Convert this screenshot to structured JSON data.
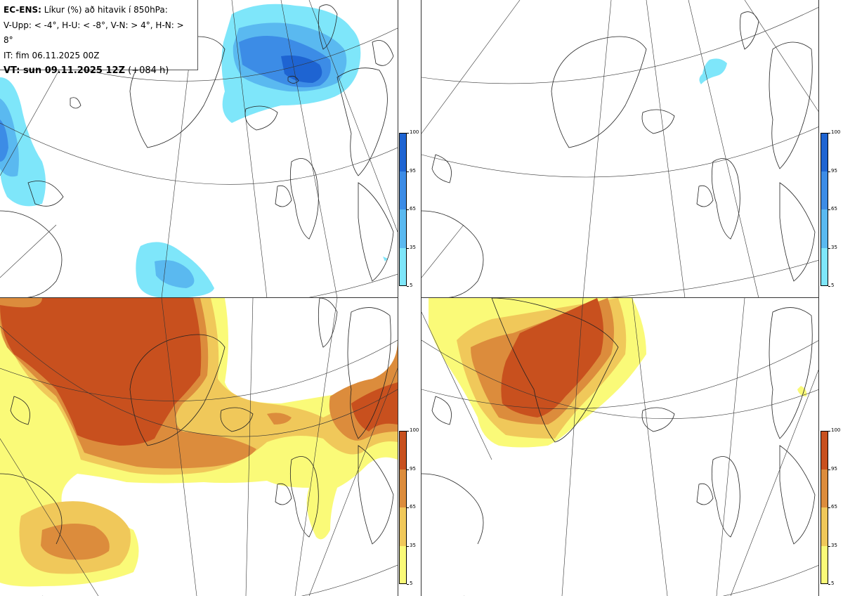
{
  "legend": {
    "line1_bold": "EC-ENS:",
    "line1_rest": "Líkur (%) að hitavik í 850hPa:",
    "line2": "V-Upp: < -4°, H-U: < -8°, V-N: > 4°, H-N: > 8°",
    "line3": "IT: fim 06.11.2025 00Z",
    "line4_bold": "VT: sun 09.11.2025 12Z",
    "line4_rest": "(+084 h)"
  },
  "colorbars": {
    "cold": {
      "ticks": [
        "100",
        "95",
        "65",
        "35",
        "5"
      ],
      "colors": [
        "#1e64d2",
        "#3c8ce6",
        "#5ab9f0",
        "#7ee6fa"
      ]
    },
    "warm": {
      "ticks": [
        "100",
        "95",
        "65",
        "35",
        "5"
      ],
      "colors": [
        "#c8501e",
        "#dc8c3c",
        "#f0c85a",
        "#fafa78"
      ]
    }
  },
  "panels": [
    {
      "name": "v-upp",
      "scheme": "cold"
    },
    {
      "name": "h-u",
      "scheme": "cold"
    },
    {
      "name": "v-n",
      "scheme": "warm"
    },
    {
      "name": "h-n",
      "scheme": "warm"
    }
  ]
}
